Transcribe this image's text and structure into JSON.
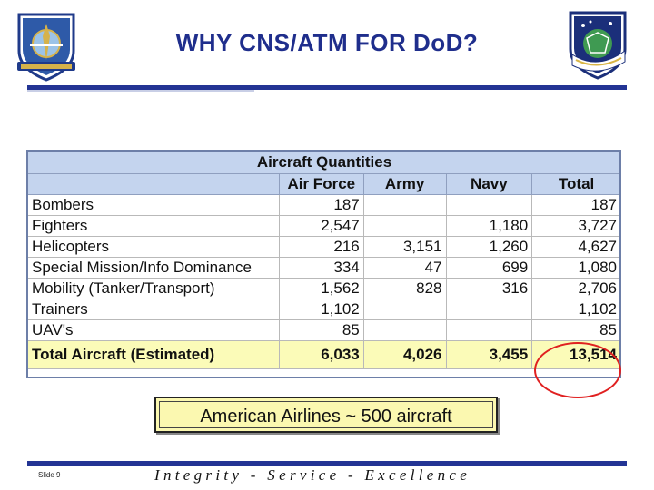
{
  "slide": {
    "title": "WHY CNS/ATM FOR DoD?",
    "callout": "American Airlines ~ 500 aircraft",
    "footer_motto": "Integrity - Service - Excellence",
    "slide_number": "Slide 9"
  },
  "logos": {
    "left": {
      "icon": "air-force-command-shield-icon",
      "colors": {
        "navy": "#1f3a8a",
        "gold": "#d6b24a",
        "field": "#2e5aa8"
      }
    },
    "right": {
      "icon": "electronic-systems-center-shield-icon",
      "colors": {
        "navy": "#1b2f7a",
        "green": "#3f9a52",
        "gold": "#d8b545"
      }
    }
  },
  "colors": {
    "title": "#1f2e8c",
    "rule": "#233494",
    "header_fill": "#c4d4ee",
    "total_fill": "#fbfbb8",
    "highlight_circle": "#e02020",
    "callout_fill": "#fbf8b0"
  },
  "table": {
    "caption": "Aircraft Quantities",
    "columns": [
      "",
      "Air Force",
      "Army",
      "Navy",
      "Total"
    ],
    "rows": [
      {
        "label": "Bombers",
        "air_force": "187",
        "army": "",
        "navy": "",
        "total": "187"
      },
      {
        "label": "Fighters",
        "air_force": "2,547",
        "army": "",
        "navy": "1,180",
        "total": "3,727"
      },
      {
        "label": "Helicopters",
        "air_force": "216",
        "army": "3,151",
        "navy": "1,260",
        "total": "4,627"
      },
      {
        "label": "Special Mission/Info Dominance",
        "air_force": "334",
        "army": "47",
        "navy": "699",
        "total": "1,080"
      },
      {
        "label": "Mobility (Tanker/Transport)",
        "air_force": "1,562",
        "army": "828",
        "navy": "316",
        "total": "2,706"
      },
      {
        "label": "Trainers",
        "air_force": "1,102",
        "army": "",
        "navy": "",
        "total": "1,102"
      },
      {
        "label": "UAV's",
        "air_force": "85",
        "army": "",
        "navy": "",
        "total": "85"
      }
    ],
    "total_row": {
      "label": "Total Aircraft (Estimated)",
      "air_force": "6,033",
      "army": "4,026",
      "navy": "3,455",
      "total": "13,514"
    }
  }
}
